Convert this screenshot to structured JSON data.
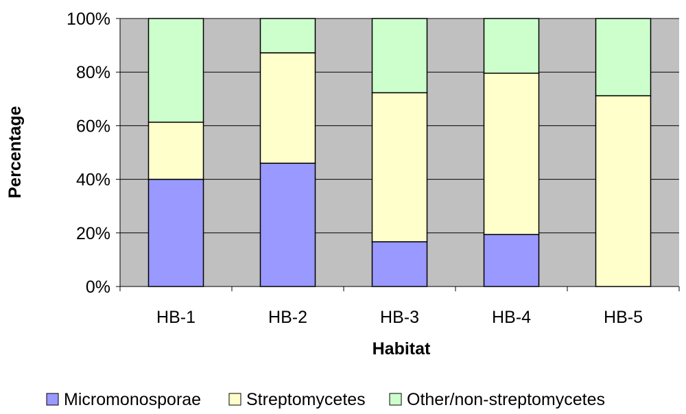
{
  "chart_data": {
    "type": "bar",
    "stacked": true,
    "normalized": true,
    "title": "",
    "xlabel": "Habitat",
    "ylabel": "Percentage",
    "categories": [
      "HB-1",
      "HB-2",
      "HB-3",
      "HB-4",
      "HB-5"
    ],
    "ylim": [
      0,
      100
    ],
    "yticks": [
      "0%",
      "20%",
      "40%",
      "60%",
      "80%",
      "100%"
    ],
    "grid": "horizontal",
    "legend_position": "bottom",
    "series": [
      {
        "name": "Micromonosporae",
        "color": "#9999ff",
        "values": [
          40,
          46,
          16.7,
          19.4,
          0
        ]
      },
      {
        "name": "Streptomycetes",
        "color": "#ffffcc",
        "values": [
          21.3,
          41.2,
          55.6,
          60.2,
          71.2
        ]
      },
      {
        "name": "Other/non-streptomycetes",
        "color": "#ccffcc",
        "values": [
          38.7,
          12.8,
          27.7,
          20.4,
          28.8
        ]
      }
    ],
    "plot_background": "#c0c0c0"
  }
}
